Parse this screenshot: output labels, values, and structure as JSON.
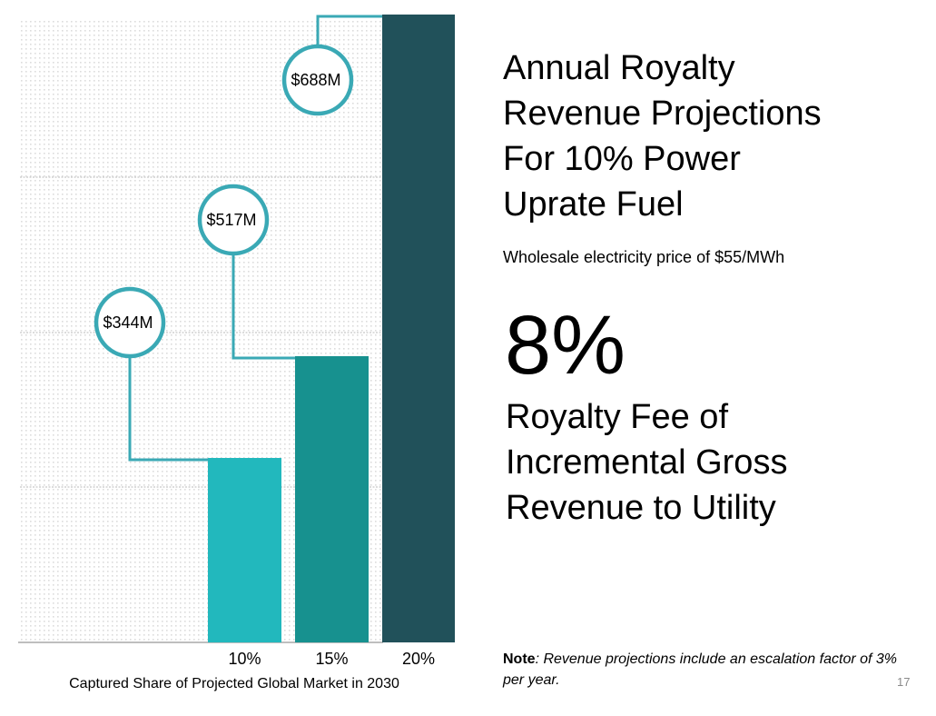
{
  "slide": {
    "title_lines": [
      "Annual Royalty",
      "Revenue Projections",
      "For 10% Power",
      "Uprate Fuel"
    ],
    "subtitle": "Wholesale electricity price of $55/MWh",
    "royalty_pct": "8%",
    "royalty_desc_lines": [
      "Royalty Fee of",
      "Incremental Gross",
      "Revenue to Utility"
    ],
    "note_label": "Note",
    "note_text": ": Revenue projections include an escalation factor of 3% per year.",
    "page_number": "17"
  },
  "colors": {
    "bar_10": "#22b8bd",
    "bar_15": "#17918f",
    "bar_20": "#21515a",
    "callout": "#3aa9b5",
    "grid": "#c8c8c8"
  },
  "chart_data": {
    "type": "bar",
    "title": "",
    "xlabel": "Captured Share of Projected Global Market in 2030",
    "ylabel": "",
    "categories": [
      "10%",
      "15%",
      "20%"
    ],
    "values": [
      344,
      517,
      688
    ],
    "value_labels": [
      "$344M",
      "$517M",
      "$688M"
    ],
    "units": "USD millions per year",
    "grid": true,
    "legend": "none"
  }
}
